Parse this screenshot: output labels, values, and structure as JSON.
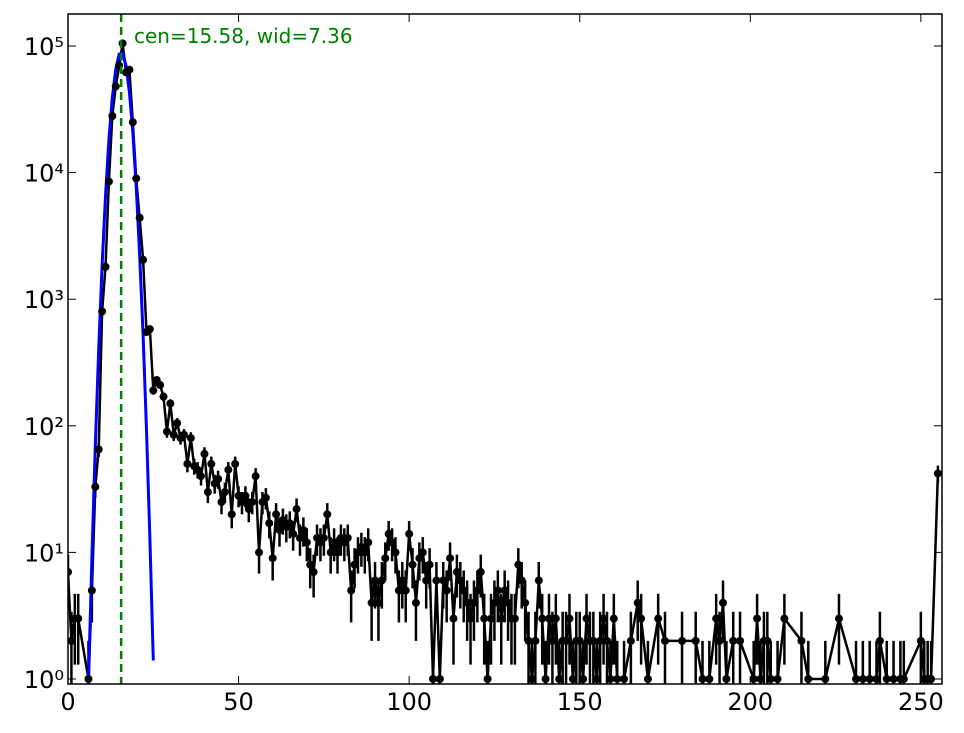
{
  "chart_data": {
    "type": "errorbar",
    "annotation": "cen=15.58, wid=7.36",
    "vline": 15.58,
    "vline_color": "#008000",
    "log_y": true,
    "xlim": [
      0,
      256.2
    ],
    "ylim": [
      0.913,
      179000
    ],
    "xticks": [
      0,
      50,
      100,
      150,
      200,
      250
    ],
    "yticks": [
      {
        "value": 1,
        "label": "10⁰"
      },
      {
        "value": 10,
        "label": "10¹"
      },
      {
        "value": 100,
        "label": "10²"
      },
      {
        "value": 1000,
        "label": "10³"
      },
      {
        "value": 10000,
        "label": "10⁴"
      },
      {
        "value": 100000,
        "label": "10⁵"
      }
    ],
    "data": {
      "color": "#000000",
      "x": [
        0,
        1,
        2,
        3,
        6,
        7,
        8,
        9,
        10,
        11,
        12,
        13,
        14,
        15,
        16,
        17,
        18,
        19,
        20,
        21,
        22,
        23,
        24,
        25,
        26,
        27,
        28,
        29,
        30,
        31,
        32,
        33,
        34,
        35,
        36,
        37,
        38,
        39,
        40,
        41,
        42,
        43,
        44,
        45,
        46,
        47,
        48,
        49,
        50,
        51,
        52,
        53,
        54,
        55,
        56,
        57,
        58,
        59,
        60,
        61,
        62,
        63,
        64,
        65,
        66,
        67,
        68,
        69,
        70,
        71,
        72,
        73,
        74,
        75,
        76,
        77,
        78,
        79,
        80,
        81,
        82,
        83,
        84,
        85,
        86,
        87,
        88,
        89,
        90,
        91,
        92,
        93,
        94,
        95,
        96,
        97,
        98,
        99,
        100,
        101,
        102,
        103,
        104,
        105,
        106,
        107,
        108,
        109,
        110,
        111,
        112,
        113,
        114,
        115,
        116,
        117,
        118,
        119,
        120,
        121,
        122,
        123,
        124,
        125,
        126,
        127,
        128,
        129,
        130,
        131,
        132,
        133,
        134,
        135,
        136,
        137,
        138,
        139,
        140,
        141,
        142,
        143,
        144,
        145,
        146,
        147,
        148,
        149,
        150,
        151,
        152,
        153,
        154,
        155,
        156,
        157,
        158,
        159,
        160,
        161,
        163,
        165,
        167,
        168,
        170,
        173,
        175,
        180,
        184,
        186,
        188,
        190,
        191,
        192,
        193,
        195,
        197,
        201,
        202,
        203,
        204,
        205,
        206,
        208,
        210,
        215,
        217,
        222,
        226,
        231,
        233,
        235,
        237,
        238,
        240,
        242,
        244,
        245,
        250,
        251,
        252,
        253,
        255
      ],
      "values": [
        7,
        2,
        3,
        3,
        1,
        5,
        33,
        65,
        800,
        1800,
        8500,
        28000,
        48000,
        70000,
        105000,
        62000,
        65000,
        25000,
        9000,
        4400,
        2050,
        550,
        580,
        190,
        230,
        210,
        170,
        90,
        150,
        85,
        105,
        80,
        85,
        50,
        80,
        48,
        45,
        40,
        60,
        30,
        50,
        35,
        38,
        25,
        30,
        45,
        20,
        50,
        28,
        25,
        28,
        22,
        25,
        40,
        10,
        25,
        27,
        17,
        9,
        20,
        15,
        18,
        16,
        17,
        14,
        22,
        13,
        15,
        12,
        8,
        7,
        13,
        12,
        13,
        20,
        10,
        12,
        10,
        13,
        12,
        13,
        5,
        8,
        10,
        11,
        10,
        12,
        4,
        6,
        4,
        6,
        9,
        14,
        12,
        10,
        5,
        6,
        5,
        14,
        8,
        4,
        9,
        10,
        6,
        8,
        1,
        6,
        1,
        6,
        5,
        9,
        3,
        7,
        6,
        5,
        4,
        3,
        4,
        5,
        7,
        3,
        1,
        3,
        4,
        5,
        3,
        5,
        4,
        3,
        3,
        8,
        6,
        4,
        2,
        1,
        2,
        6,
        3,
        1,
        3,
        2,
        3,
        1,
        2,
        2,
        3,
        1,
        2,
        2,
        1,
        3,
        2,
        2,
        1,
        2,
        3,
        2,
        1,
        3,
        1,
        1,
        2,
        4,
        3,
        1,
        3,
        2,
        2,
        2,
        1,
        1,
        3,
        2,
        4,
        1,
        2,
        2,
        1,
        3,
        1,
        2,
        2,
        1,
        1,
        3,
        2,
        1,
        1,
        3,
        1,
        1,
        1,
        1,
        2,
        1,
        1,
        1,
        1,
        2,
        1,
        1,
        1,
        42
      ],
      "errors": [
        2.6,
        1.4,
        1.7,
        1.7,
        1,
        2.2,
        5.7,
        8.1,
        28,
        42,
        92,
        170,
        220,
        260,
        320,
        250,
        250,
        160,
        95,
        66,
        45,
        23,
        24,
        14,
        15,
        14,
        13,
        9.5,
        12,
        9.2,
        10,
        8.9,
        9.2,
        7.1,
        8.9,
        6.9,
        6.7,
        6.3,
        7.7,
        5.5,
        7.1,
        5.9,
        6.2,
        5,
        5.5,
        6.7,
        4.5,
        7.1,
        5.3,
        5,
        5.3,
        4.7,
        5,
        6.3,
        3.2,
        5,
        5.2,
        4.1,
        3,
        4.5,
        3.9,
        4.2,
        4,
        4.1,
        3.7,
        4.7,
        3.6,
        3.9,
        3.5,
        2.8,
        2.6,
        3.6,
        3.5,
        3.6,
        4.5,
        3.2,
        3.5,
        3.2,
        3.6,
        3.5,
        3.6,
        2.2,
        2.8,
        3.2,
        3.3,
        3.2,
        3.5,
        2,
        2.4,
        2,
        2.4,
        3,
        3.7,
        3.5,
        3.2,
        2.2,
        2.4,
        2.2,
        3.7,
        2.8,
        2,
        3,
        3.2,
        2.4,
        2.8,
        1,
        2.4,
        1,
        2.4,
        2.2,
        3,
        1.7,
        2.6,
        2.4,
        2.2,
        2,
        1.7,
        2,
        2.2,
        2.6,
        1.7,
        1,
        1.7,
        2,
        2.2,
        1.7,
        2.2,
        2,
        1.7,
        1.7,
        2.8,
        2.4,
        2,
        1.4,
        1,
        1.4,
        2.4,
        1.7,
        1,
        1.7,
        1.4,
        1.7,
        1,
        1.4,
        1.4,
        1.7,
        1,
        1.4,
        1.4,
        1,
        1.7,
        1.4,
        1.4,
        1,
        1.4,
        1.7,
        1.4,
        1,
        1.7,
        1,
        1,
        1.4,
        2,
        1.7,
        1,
        1.7,
        1.4,
        1.4,
        1.4,
        1,
        1,
        1.7,
        1.4,
        2,
        1,
        1.4,
        1.4,
        1,
        1.7,
        1,
        1.4,
        1.4,
        1,
        1,
        1.7,
        1.4,
        1,
        1,
        1.7,
        1,
        1,
        1,
        1,
        1.4,
        1,
        1,
        1,
        1,
        1.4,
        1,
        1,
        1,
        6.5
      ]
    },
    "fit": {
      "color": "#0000ff",
      "x": [
        6,
        7,
        8,
        9,
        10,
        11,
        12,
        13,
        14,
        15,
        16,
        17,
        18,
        19,
        20,
        21,
        22,
        23,
        24,
        25
      ],
      "values": [
        0.94,
        9.1,
        69,
        402,
        1840,
        6540,
        18200,
        39200,
        65900,
        86300,
        88000,
        69900,
        43300,
        20900,
        7830,
        2290,
        522,
        92.7,
        12.8,
        1.4
      ]
    }
  }
}
